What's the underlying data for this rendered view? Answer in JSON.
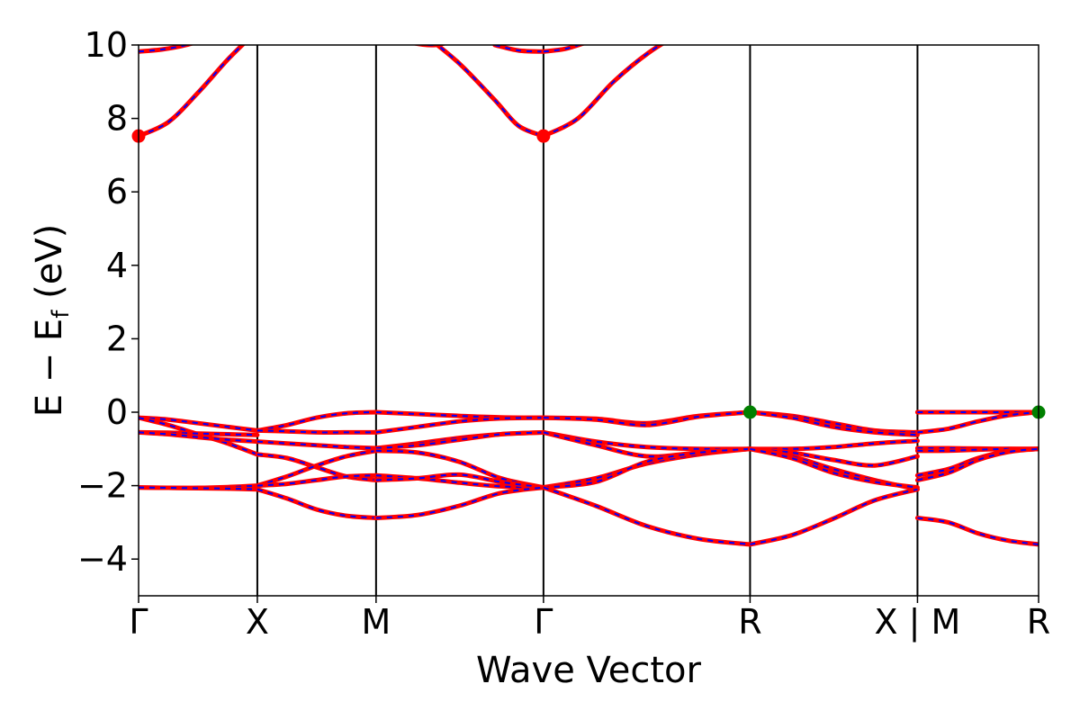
{
  "chart_data": {
    "type": "line",
    "title": "",
    "xlabel": "Wave Vector",
    "ylabel": "E − E_f (eV)",
    "ylabel_parts": {
      "main": "E − E",
      "sub": "f",
      "unit": " (eV)"
    },
    "ylim": [
      -5,
      10
    ],
    "xlim": [
      0,
      7.58
    ],
    "grid": false,
    "legend": "none",
    "y_ticks": [
      {
        "value": -4,
        "label": "−4"
      },
      {
        "value": -2,
        "label": "−2"
      },
      {
        "value": 0,
        "label": "0"
      },
      {
        "value": 2,
        "label": "2"
      },
      {
        "value": 4,
        "label": "4"
      },
      {
        "value": 6,
        "label": "6"
      },
      {
        "value": 8,
        "label": "8"
      },
      {
        "value": 10,
        "label": "10"
      }
    ],
    "kpoints": [
      {
        "label": "Γ",
        "x": 0
      },
      {
        "label": "X",
        "x": 1.0
      },
      {
        "label": "M",
        "x": 2.0
      },
      {
        "label": "Γ",
        "x": 3.41
      },
      {
        "label": "R",
        "x": 5.15
      },
      {
        "label": "X | M",
        "x": 6.56
      },
      {
        "label": "R",
        "x": 7.58
      }
    ],
    "colors": {
      "band_primary": "#ff0000",
      "band_overlay": "#0000ff",
      "cbm": "#ff0000",
      "vbm": "#008000",
      "kline": "#000000"
    },
    "markers": [
      {
        "name": "CBM",
        "x": 0,
        "y": 7.52,
        "color": "#ff0000"
      },
      {
        "name": "CBM",
        "x": 3.41,
        "y": 7.52,
        "color": "#ff0000"
      },
      {
        "name": "VBM",
        "x": 5.15,
        "y": 0.0,
        "color": "#008000"
      },
      {
        "name": "VBM",
        "x": 7.58,
        "y": 0.0,
        "color": "#008000"
      }
    ],
    "bands": [
      {
        "segment": 0,
        "x": [
          0,
          0.25,
          0.5,
          0.75,
          1.0
        ],
        "y": [
          7.52,
          7.9,
          8.7,
          9.6,
          10.4
        ]
      },
      {
        "segment": 0,
        "x": [
          0,
          0.2,
          0.4,
          0.6
        ],
        "y": [
          9.82,
          9.88,
          10.0,
          10.2
        ]
      },
      {
        "segment": 0,
        "x": [
          0,
          0.25,
          0.5,
          0.75,
          1.0
        ],
        "y": [
          -0.15,
          -0.2,
          -0.3,
          -0.4,
          -0.5
        ]
      },
      {
        "segment": 0,
        "x": [
          0,
          0.25,
          0.5,
          0.75,
          1.0
        ],
        "y": [
          -0.15,
          -0.35,
          -0.6,
          -0.85,
          -1.15
        ]
      },
      {
        "segment": 0,
        "x": [
          0,
          0.25,
          0.5,
          0.75,
          1.0
        ],
        "y": [
          -0.55,
          -0.56,
          -0.58,
          -0.6,
          -0.62
        ]
      },
      {
        "segment": 0,
        "x": [
          0,
          0.25,
          0.5,
          0.75,
          1.0
        ],
        "y": [
          -0.55,
          -0.6,
          -0.68,
          -0.75,
          -0.8
        ]
      },
      {
        "segment": 0,
        "x": [
          0,
          0.25,
          0.5,
          0.75,
          1.0
        ],
        "y": [
          -2.05,
          -2.06,
          -2.06,
          -2.04,
          -2.0
        ]
      },
      {
        "segment": 0,
        "x": [
          0,
          0.25,
          0.5,
          0.75,
          1.0
        ],
        "y": [
          -2.05,
          -2.06,
          -2.07,
          -2.08,
          -2.1
        ]
      },
      {
        "segment": 1,
        "x": [
          1.0,
          1.25,
          1.5,
          1.75,
          2.0
        ],
        "y": [
          -0.5,
          -0.35,
          -0.15,
          -0.03,
          0.0
        ]
      },
      {
        "segment": 1,
        "x": [
          1.0,
          1.25,
          1.5,
          1.75,
          2.0
        ],
        "y": [
          -0.5,
          -0.52,
          -0.55,
          -0.55,
          -0.55
        ]
      },
      {
        "segment": 1,
        "x": [
          1.0,
          1.25,
          1.5,
          1.75,
          2.0
        ],
        "y": [
          -0.8,
          -0.85,
          -0.9,
          -0.95,
          -0.98
        ]
      },
      {
        "segment": 1,
        "x": [
          1.0,
          1.25,
          1.5,
          1.75,
          2.0
        ],
        "y": [
          -1.15,
          -1.25,
          -1.5,
          -1.75,
          -1.85
        ]
      },
      {
        "segment": 1,
        "x": [
          1.0,
          1.25,
          1.5,
          1.75,
          2.0
        ],
        "y": [
          -2.0,
          -1.75,
          -1.45,
          -1.2,
          -1.05
        ]
      },
      {
        "segment": 1,
        "x": [
          1.0,
          1.25,
          1.5,
          1.75,
          2.0
        ],
        "y": [
          -2.0,
          -1.95,
          -1.85,
          -1.75,
          -1.72
        ]
      },
      {
        "segment": 1,
        "x": [
          1.0,
          1.25,
          1.5,
          1.75,
          2.0
        ],
        "y": [
          -2.1,
          -2.35,
          -2.65,
          -2.82,
          -2.88
        ]
      },
      {
        "segment": 2,
        "x": [
          2.0,
          2.35,
          2.7,
          3.05,
          3.41
        ],
        "y": [
          0.0,
          -0.05,
          -0.1,
          -0.14,
          -0.15
        ]
      },
      {
        "segment": 2,
        "x": [
          2.0,
          2.35,
          2.7,
          3.05,
          3.41
        ],
        "y": [
          -0.55,
          -0.4,
          -0.25,
          -0.17,
          -0.15
        ]
      },
      {
        "segment": 2,
        "x": [
          2.0,
          2.35,
          2.7,
          3.05,
          3.41
        ],
        "y": [
          -0.98,
          -0.85,
          -0.7,
          -0.6,
          -0.55
        ]
      },
      {
        "segment": 2,
        "x": [
          2.0,
          2.35,
          2.7,
          3.05,
          3.41
        ],
        "y": [
          -0.98,
          -0.9,
          -0.75,
          -0.6,
          -0.55
        ]
      },
      {
        "segment": 2,
        "x": [
          2.0,
          2.35,
          2.7,
          3.05,
          3.41
        ],
        "y": [
          -1.05,
          -1.1,
          -1.35,
          -1.8,
          -2.05
        ]
      },
      {
        "segment": 2,
        "x": [
          2.0,
          2.35,
          2.7,
          3.05,
          3.41
        ],
        "y": [
          -1.72,
          -1.8,
          -1.92,
          -2.02,
          -2.05
        ]
      },
      {
        "segment": 2,
        "x": [
          2.0,
          2.35,
          2.7,
          3.05,
          3.41
        ],
        "y": [
          -1.85,
          -1.8,
          -1.7,
          -1.9,
          -2.05
        ]
      },
      {
        "segment": 2,
        "x": [
          2.0,
          2.35,
          2.7,
          3.05,
          3.41
        ],
        "y": [
          -2.88,
          -2.8,
          -2.55,
          -2.2,
          -2.05
        ]
      },
      {
        "segment": 2,
        "x": [
          2.0,
          2.25,
          2.5,
          2.7,
          2.9
        ],
        "y": [
          10.4,
          10.1,
          10.0,
          10.2,
          10.5
        ]
      },
      {
        "segment": 2,
        "x": [
          2.4,
          2.7,
          3.0,
          3.2,
          3.41
        ],
        "y": [
          10.3,
          9.5,
          8.5,
          7.8,
          7.52
        ]
      },
      {
        "segment": 2,
        "x": [
          3.0,
          3.2,
          3.41
        ],
        "y": [
          10.0,
          9.85,
          9.82
        ]
      },
      {
        "segment": 3,
        "x": [
          3.41,
          3.7,
          4.0,
          4.3,
          4.6
        ],
        "y": [
          7.52,
          8.0,
          9.0,
          9.8,
          10.4
        ]
      },
      {
        "segment": 3,
        "x": [
          3.41,
          3.6,
          3.8,
          4.0
        ],
        "y": [
          9.82,
          9.9,
          10.1,
          10.3
        ]
      },
      {
        "segment": 3,
        "x": [
          3.41,
          3.85,
          4.28,
          4.72,
          5.15
        ],
        "y": [
          -0.15,
          -0.18,
          -0.3,
          -0.1,
          0.0
        ]
      },
      {
        "segment": 3,
        "x": [
          3.41,
          3.85,
          4.28,
          4.72,
          5.15
        ],
        "y": [
          -0.15,
          -0.2,
          -0.35,
          -0.12,
          0.0
        ]
      },
      {
        "segment": 3,
        "x": [
          3.41,
          3.85,
          4.28,
          4.72,
          5.15
        ],
        "y": [
          -0.55,
          -0.8,
          -0.95,
          -1.0,
          -1.0
        ]
      },
      {
        "segment": 3,
        "x": [
          3.41,
          3.85,
          4.28,
          4.72,
          5.15
        ],
        "y": [
          -0.55,
          -0.9,
          -1.2,
          -1.1,
          -1.0
        ]
      },
      {
        "segment": 3,
        "x": [
          3.41,
          3.85,
          4.28,
          4.72,
          5.15
        ],
        "y": [
          -2.05,
          -1.8,
          -1.4,
          -1.15,
          -1.0
        ]
      },
      {
        "segment": 3,
        "x": [
          3.41,
          3.85,
          4.28,
          4.72,
          5.15
        ],
        "y": [
          -2.05,
          -1.9,
          -1.35,
          -1.1,
          -1.0
        ]
      },
      {
        "segment": 3,
        "x": [
          3.41,
          3.85,
          4.28,
          4.72,
          5.15
        ],
        "y": [
          -2.05,
          -2.55,
          -3.1,
          -3.45,
          -3.6
        ]
      },
      {
        "segment": 4,
        "x": [
          5.15,
          5.5,
          5.85,
          6.2,
          6.56
        ],
        "y": [
          0.0,
          -0.1,
          -0.3,
          -0.5,
          -0.55
        ]
      },
      {
        "segment": 4,
        "x": [
          5.15,
          5.5,
          5.85,
          6.2,
          6.56
        ],
        "y": [
          0.0,
          -0.15,
          -0.4,
          -0.55,
          -0.62
        ]
      },
      {
        "segment": 4,
        "x": [
          5.15,
          5.5,
          5.85,
          6.2,
          6.56
        ],
        "y": [
          -1.0,
          -1.0,
          -0.95,
          -0.85,
          -0.78
        ]
      },
      {
        "segment": 4,
        "x": [
          5.15,
          5.5,
          5.85,
          6.2,
          6.56
        ],
        "y": [
          -1.0,
          -1.1,
          -1.3,
          -1.45,
          -1.2
        ]
      },
      {
        "segment": 4,
        "x": [
          5.15,
          5.5,
          5.85,
          6.2,
          6.56
        ],
        "y": [
          -1.0,
          -1.2,
          -1.55,
          -1.85,
          -2.1
        ]
      },
      {
        "segment": 4,
        "x": [
          5.15,
          5.5,
          5.85,
          6.2,
          6.56
        ],
        "y": [
          -1.0,
          -1.25,
          -1.65,
          -1.9,
          -2.05
        ]
      },
      {
        "segment": 4,
        "x": [
          5.15,
          5.5,
          5.85,
          6.2,
          6.56
        ],
        "y": [
          -3.6,
          -3.35,
          -2.9,
          -2.4,
          -2.1
        ]
      },
      {
        "segment": 5,
        "x": [
          6.56,
          6.82,
          7.07,
          7.33,
          7.58
        ],
        "y": [
          0.0,
          0.0,
          0.0,
          0.0,
          0.0
        ]
      },
      {
        "segment": 5,
        "x": [
          6.56,
          6.82,
          7.07,
          7.33,
          7.58
        ],
        "y": [
          -0.55,
          -0.45,
          -0.25,
          -0.08,
          0.0
        ]
      },
      {
        "segment": 5,
        "x": [
          6.56,
          6.82,
          7.07,
          7.33,
          7.58
        ],
        "y": [
          -0.98,
          -0.98,
          -0.99,
          -1.0,
          -1.0
        ]
      },
      {
        "segment": 5,
        "x": [
          6.56,
          6.82,
          7.07,
          7.33,
          7.58
        ],
        "y": [
          -1.05,
          -1.05,
          -1.02,
          -1.0,
          -1.0
        ]
      },
      {
        "segment": 5,
        "x": [
          6.56,
          6.82,
          7.07,
          7.33,
          7.58
        ],
        "y": [
          -1.72,
          -1.55,
          -1.25,
          -1.05,
          -1.0
        ]
      },
      {
        "segment": 5,
        "x": [
          6.56,
          6.82,
          7.07,
          7.33,
          7.58
        ],
        "y": [
          -1.85,
          -1.65,
          -1.3,
          -1.08,
          -1.0
        ]
      },
      {
        "segment": 5,
        "x": [
          6.56,
          6.82,
          7.07,
          7.33,
          7.58
        ],
        "y": [
          -2.88,
          -3.0,
          -3.3,
          -3.5,
          -3.6
        ]
      }
    ]
  }
}
